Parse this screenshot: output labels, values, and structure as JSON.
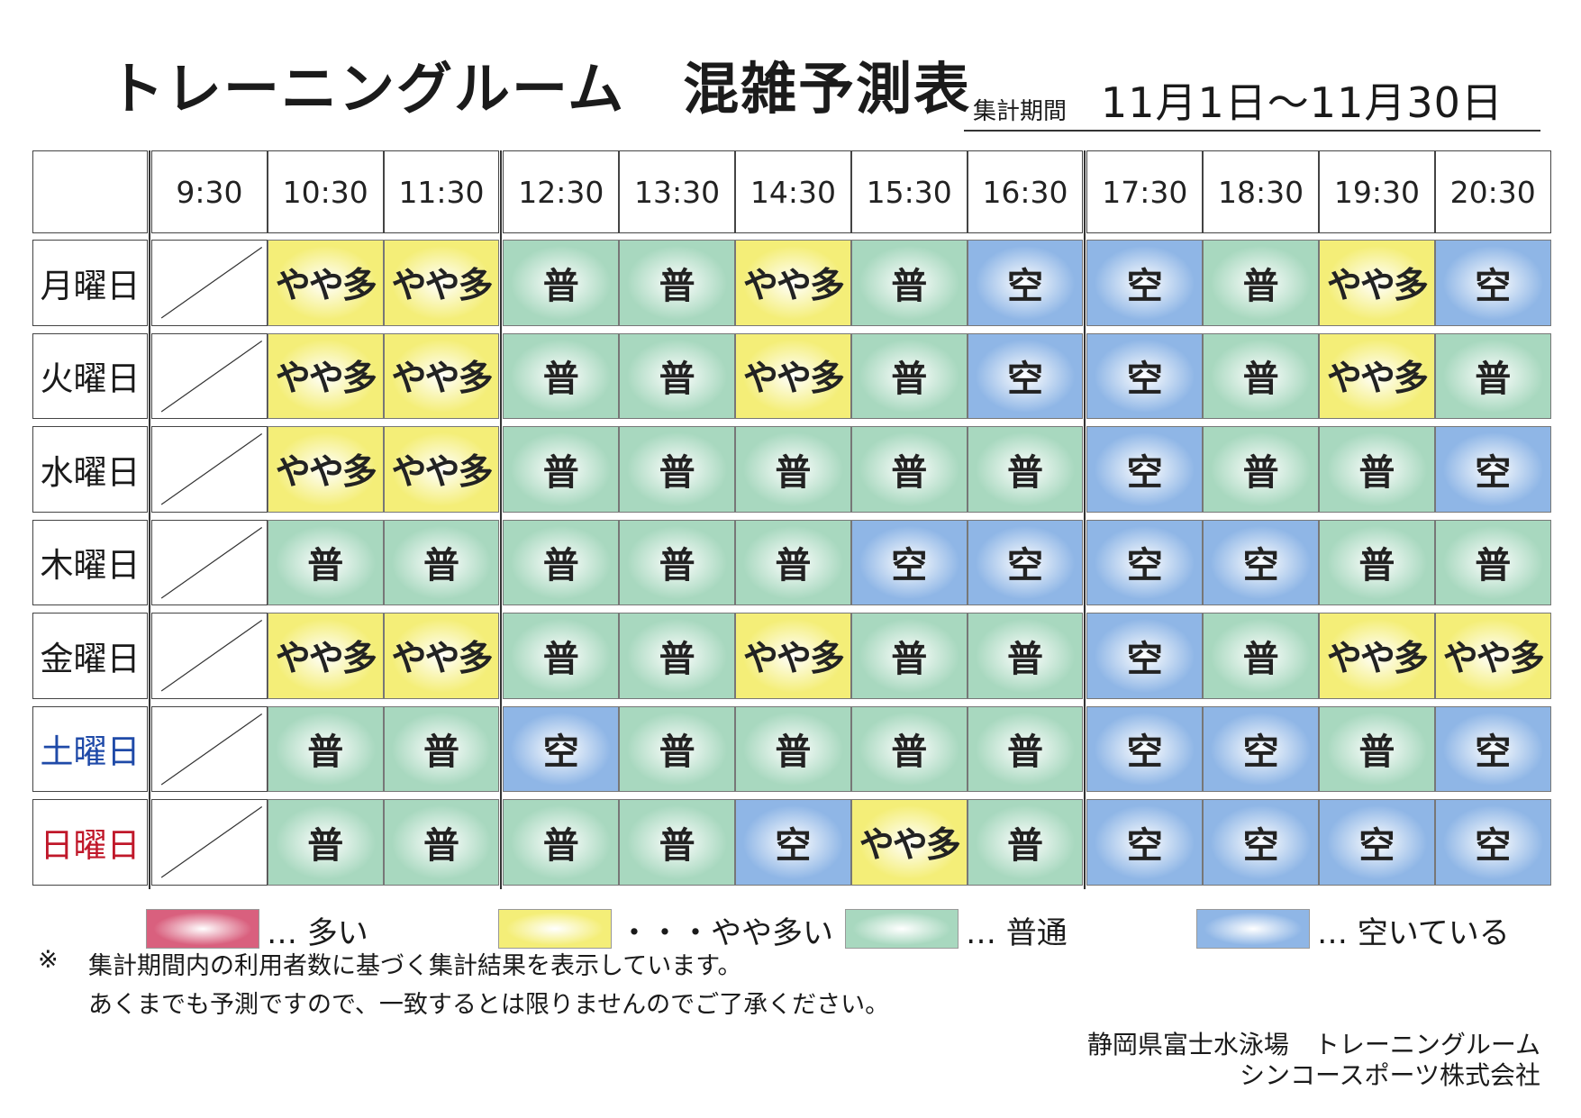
{
  "title": "トレーニングルーム　混雑予測表",
  "period": {
    "label": "集計期間",
    "value": "11月1日〜11月30日"
  },
  "time_slots": [
    "9:30",
    "10:30",
    "11:30",
    "12:30",
    "13:30",
    "14:30",
    "15:30",
    "16:30",
    "17:30",
    "18:30",
    "19:30",
    "20:30"
  ],
  "level_labels": {
    "high": "多",
    "somewhat": "やや多",
    "normal": "普",
    "empty": "空",
    "none": ""
  },
  "colors": {
    "high": "#d9607e",
    "somewhat": "#f4ee78",
    "normal": "#a8d8bf",
    "empty": "#8fb6e6",
    "saturday": "#1f4aa8",
    "sunday": "#c0182a"
  },
  "rows": [
    {
      "day": "月曜日",
      "day_type": "weekday",
      "levels": [
        "none",
        "somewhat",
        "somewhat",
        "normal",
        "normal",
        "somewhat",
        "normal",
        "empty",
        "empty",
        "normal",
        "somewhat",
        "empty"
      ]
    },
    {
      "day": "火曜日",
      "day_type": "weekday",
      "levels": [
        "none",
        "somewhat",
        "somewhat",
        "normal",
        "normal",
        "somewhat",
        "normal",
        "empty",
        "empty",
        "normal",
        "somewhat",
        "normal"
      ]
    },
    {
      "day": "水曜日",
      "day_type": "weekday",
      "levels": [
        "none",
        "somewhat",
        "somewhat",
        "normal",
        "normal",
        "normal",
        "normal",
        "normal",
        "empty",
        "normal",
        "normal",
        "empty"
      ]
    },
    {
      "day": "木曜日",
      "day_type": "weekday",
      "levels": [
        "none",
        "normal",
        "normal",
        "normal",
        "normal",
        "normal",
        "empty",
        "empty",
        "empty",
        "empty",
        "normal",
        "normal"
      ]
    },
    {
      "day": "金曜日",
      "day_type": "weekday",
      "levels": [
        "none",
        "somewhat",
        "somewhat",
        "normal",
        "normal",
        "somewhat",
        "normal",
        "normal",
        "empty",
        "normal",
        "somewhat",
        "somewhat"
      ]
    },
    {
      "day": "土曜日",
      "day_type": "saturday",
      "levels": [
        "none",
        "normal",
        "normal",
        "empty",
        "normal",
        "normal",
        "normal",
        "normal",
        "empty",
        "empty",
        "normal",
        "empty"
      ]
    },
    {
      "day": "日曜日",
      "day_type": "sunday",
      "levels": [
        "none",
        "normal",
        "normal",
        "normal",
        "normal",
        "empty",
        "somewhat",
        "normal",
        "empty",
        "empty",
        "empty",
        "empty"
      ]
    }
  ],
  "legend": [
    {
      "level": "high",
      "label": "… 多い"
    },
    {
      "level": "somewhat",
      "label": "・・・やや多い"
    },
    {
      "level": "normal",
      "label": "… 普通"
    },
    {
      "level": "empty",
      "label": "… 空いている"
    }
  ],
  "notes": {
    "mark": "※",
    "line1": "集計期間内の利用者数に基づく集計結果を表示しています。",
    "line2": "あくまでも予測ですので、一致するとは限りませんのでご了承ください。"
  },
  "footer": {
    "line1": "静岡県富士水泳場　トレーニングルーム",
    "line2": "シンコースポーツ株式会社"
  }
}
